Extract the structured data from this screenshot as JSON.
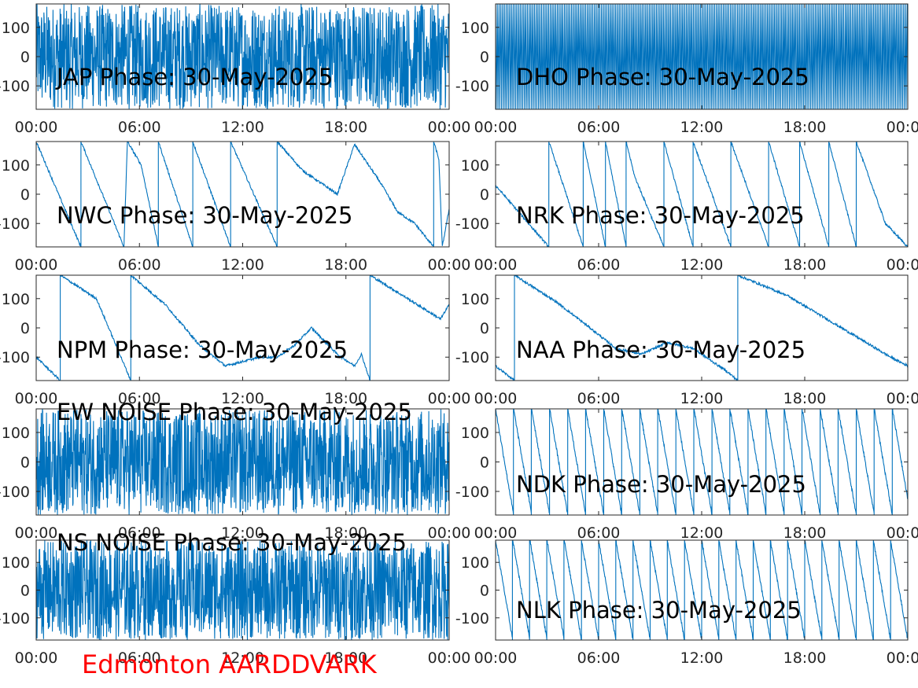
{
  "footer": "Edmonton AARDDVARK",
  "style": {
    "trace_color": "#0072bd",
    "axis_color": "#262626",
    "label_color": "#000000",
    "footer_color": "#ff0000"
  },
  "chart_data": [
    {
      "type": "line",
      "title": "JAP Phase: 30-May-2025",
      "x_ticks": [
        "00:00",
        "06:00",
        "12:00",
        "18:00",
        "00:00"
      ],
      "y_ticks": [
        "-100",
        "0",
        "100"
      ],
      "ylim": [
        -180,
        180
      ],
      "xlim_hours": [
        0,
        24
      ],
      "grid": false,
      "series": [
        {
          "pattern": "noise",
          "segments": [
            {
              "t": 0,
              "v": 0
            },
            {
              "t": 24,
              "v": 0
            }
          ]
        }
      ]
    },
    {
      "type": "line",
      "title": "DHO Phase: 30-May-2025",
      "x_ticks": [
        "00:00",
        "06:00",
        "12:00",
        "18:00",
        "00:00"
      ],
      "y_ticks": [
        "-100",
        "0",
        "100"
      ],
      "ylim": [
        -180,
        180
      ],
      "xlim_hours": [
        0,
        24
      ],
      "grid": false,
      "series": [
        {
          "pattern": "fast-wrap",
          "segments": [
            {
              "t": 0,
              "v": 0
            },
            {
              "t": 24,
              "v": 0
            }
          ]
        }
      ]
    },
    {
      "type": "line",
      "title": "NWC Phase: 30-May-2025",
      "x_ticks": [
        "00:00",
        "06:00",
        "12:00",
        "18:00",
        "00:00"
      ],
      "y_ticks": [
        "-100",
        "0",
        "100"
      ],
      "ylim": [
        -180,
        180
      ],
      "xlim_hours": [
        0,
        24
      ],
      "grid": false,
      "series": [
        {
          "pattern": "wrap",
          "segments": [
            {
              "t": 0,
              "v": 180
            },
            {
              "t": 2.6,
              "v": -180
            },
            {
              "t": 2.6,
              "v": 180
            },
            {
              "t": 5.1,
              "v": -180
            },
            {
              "t": 5.3,
              "v": 180
            },
            {
              "t": 6.1,
              "v": 100
            },
            {
              "t": 7.1,
              "v": -180
            },
            {
              "t": 7.1,
              "v": 180
            },
            {
              "t": 9.1,
              "v": -180
            },
            {
              "t": 9.1,
              "v": 180
            },
            {
              "t": 11.3,
              "v": -180
            },
            {
              "t": 11.3,
              "v": 180
            },
            {
              "t": 14.0,
              "v": -180
            },
            {
              "t": 14.0,
              "v": 180
            },
            {
              "t": 15.5,
              "v": 80
            },
            {
              "t": 17.5,
              "v": 0
            },
            {
              "t": 18.5,
              "v": 170
            },
            {
              "t": 20.0,
              "v": 40
            },
            {
              "t": 21.0,
              "v": -60
            },
            {
              "t": 22.0,
              "v": -100
            },
            {
              "t": 23.1,
              "v": -180
            },
            {
              "t": 23.1,
              "v": 180
            },
            {
              "t": 23.4,
              "v": 120
            },
            {
              "t": 23.6,
              "v": -180
            },
            {
              "t": 24,
              "v": -50
            }
          ]
        }
      ]
    },
    {
      "type": "line",
      "title": "NRK Phase: 30-May-2025",
      "x_ticks": [
        "00:00",
        "06:00",
        "12:00",
        "18:00",
        "00:00"
      ],
      "y_ticks": [
        "-100",
        "0",
        "100"
      ],
      "ylim": [
        -180,
        180
      ],
      "xlim_hours": [
        0,
        24
      ],
      "grid": false,
      "series": [
        {
          "pattern": "wrap",
          "segments": [
            {
              "t": 0,
              "v": 30
            },
            {
              "t": 3.1,
              "v": -180
            },
            {
              "t": 3.1,
              "v": 180
            },
            {
              "t": 4.0,
              "v": 20
            },
            {
              "t": 5.1,
              "v": -180
            },
            {
              "t": 5.1,
              "v": 180
            },
            {
              "t": 6.4,
              "v": -180
            },
            {
              "t": 6.4,
              "v": 180
            },
            {
              "t": 7.6,
              "v": -180
            },
            {
              "t": 7.6,
              "v": 180
            },
            {
              "t": 8.1,
              "v": 60
            },
            {
              "t": 9.8,
              "v": -180
            },
            {
              "t": 9.8,
              "v": 180
            },
            {
              "t": 11.5,
              "v": -180
            },
            {
              "t": 11.5,
              "v": 180
            },
            {
              "t": 13.7,
              "v": -180
            },
            {
              "t": 13.7,
              "v": 180
            },
            {
              "t": 15.9,
              "v": -180
            },
            {
              "t": 15.9,
              "v": 180
            },
            {
              "t": 17.7,
              "v": -180
            },
            {
              "t": 17.7,
              "v": 180
            },
            {
              "t": 19.4,
              "v": -180
            },
            {
              "t": 19.4,
              "v": 180
            },
            {
              "t": 21.0,
              "v": -180
            },
            {
              "t": 21.0,
              "v": 180
            },
            {
              "t": 22.7,
              "v": -100
            },
            {
              "t": 24,
              "v": -180
            }
          ]
        }
      ]
    },
    {
      "type": "line",
      "title": "NPM Phase: 30-May-2025",
      "x_ticks": [
        "00:00",
        "06:00",
        "12:00",
        "18:00",
        "00:00"
      ],
      "y_ticks": [
        "-100",
        "0",
        "100"
      ],
      "ylim": [
        -180,
        180
      ],
      "xlim_hours": [
        0,
        24
      ],
      "grid": false,
      "series": [
        {
          "pattern": "wrap",
          "segments": [
            {
              "t": 0,
              "v": -100
            },
            {
              "t": 1.4,
              "v": -180
            },
            {
              "t": 1.4,
              "v": 180
            },
            {
              "t": 3.5,
              "v": 100
            },
            {
              "t": 5.5,
              "v": -180
            },
            {
              "t": 5.5,
              "v": 180
            },
            {
              "t": 7.5,
              "v": 80
            },
            {
              "t": 9.5,
              "v": -60
            },
            {
              "t": 11.0,
              "v": -130
            },
            {
              "t": 13.0,
              "v": -100
            },
            {
              "t": 14.0,
              "v": -100
            },
            {
              "t": 15.0,
              "v": -60
            },
            {
              "t": 16.0,
              "v": 0
            },
            {
              "t": 17.5,
              "v": -90
            },
            {
              "t": 18.5,
              "v": -130
            },
            {
              "t": 18.9,
              "v": -90
            },
            {
              "t": 19.4,
              "v": -180
            },
            {
              "t": 19.4,
              "v": 180
            },
            {
              "t": 23.5,
              "v": 30
            },
            {
              "t": 24,
              "v": 80
            }
          ]
        }
      ]
    },
    {
      "type": "line",
      "title": "NAA Phase: 30-May-2025",
      "x_ticks": [
        "00:00",
        "06:00",
        "12:00",
        "18:00",
        "00:00"
      ],
      "y_ticks": [
        "-100",
        "0",
        "100"
      ],
      "ylim": [
        -180,
        180
      ],
      "xlim_hours": [
        0,
        24
      ],
      "grid": false,
      "series": [
        {
          "pattern": "wrap",
          "segments": [
            {
              "t": 0,
              "v": -130
            },
            {
              "t": 1.1,
              "v": -180
            },
            {
              "t": 1.1,
              "v": 180
            },
            {
              "t": 3.5,
              "v": 90
            },
            {
              "t": 5.5,
              "v": 0
            },
            {
              "t": 7.0,
              "v": -70
            },
            {
              "t": 8.5,
              "v": -90
            },
            {
              "t": 10.0,
              "v": -50
            },
            {
              "t": 11.5,
              "v": -70
            },
            {
              "t": 13.5,
              "v": -150
            },
            {
              "t": 14.1,
              "v": -180
            },
            {
              "t": 14.1,
              "v": 180
            },
            {
              "t": 17.0,
              "v": 110
            },
            {
              "t": 19.0,
              "v": 40
            },
            {
              "t": 21.0,
              "v": -30
            },
            {
              "t": 23.0,
              "v": -100
            },
            {
              "t": 24,
              "v": -130
            }
          ]
        }
      ]
    },
    {
      "type": "line",
      "title": "EW NOISE Phase: 30-May-2025",
      "x_ticks": [
        "00:00",
        "06:00",
        "12:00",
        "18:00",
        "00:00"
      ],
      "y_ticks": [
        "-100",
        "0",
        "100"
      ],
      "ylim": [
        -180,
        180
      ],
      "xlim_hours": [
        0,
        24
      ],
      "grid": false,
      "series": [
        {
          "pattern": "noise",
          "segments": [
            {
              "t": 0,
              "v": 0
            },
            {
              "t": 24,
              "v": 0
            }
          ]
        }
      ]
    },
    {
      "type": "line",
      "title": "NDK Phase: 30-May-2025",
      "x_ticks": [
        "00:00",
        "06:00",
        "12:00",
        "18:00",
        "00:00"
      ],
      "y_ticks": [
        "-100",
        "0",
        "100"
      ],
      "ylim": [
        -180,
        180
      ],
      "xlim_hours": [
        0,
        24
      ],
      "grid": false,
      "series": [
        {
          "pattern": "sawtooth",
          "period_hours": 1.05,
          "segments": [
            {
              "t": 0,
              "v": 120
            },
            {
              "t": 24,
              "v": 120
            }
          ]
        }
      ]
    },
    {
      "type": "line",
      "title": "NS NOISE Phase: 30-May-2025",
      "x_ticks": [
        "00:00",
        "06:00",
        "12:00",
        "18:00",
        "00:00"
      ],
      "y_ticks": [
        "-100",
        "0",
        "100"
      ],
      "ylim": [
        -180,
        180
      ],
      "xlim_hours": [
        0,
        24
      ],
      "grid": false,
      "series": [
        {
          "pattern": "noise",
          "segments": [
            {
              "t": 0,
              "v": 0
            },
            {
              "t": 24,
              "v": 0
            }
          ]
        }
      ]
    },
    {
      "type": "line",
      "title": "NLK Phase: 30-May-2025",
      "x_ticks": [
        "00:00",
        "06:00",
        "12:00",
        "18:00",
        "00:00"
      ],
      "y_ticks": [
        "-100",
        "0",
        "100"
      ],
      "ylim": [
        -180,
        180
      ],
      "xlim_hours": [
        0,
        24
      ],
      "grid": false,
      "series": [
        {
          "pattern": "sawtooth",
          "period_hours": 1.0,
          "segments": [
            {
              "t": 0,
              "v": 180
            },
            {
              "t": 24,
              "v": -80
            }
          ]
        }
      ]
    }
  ]
}
